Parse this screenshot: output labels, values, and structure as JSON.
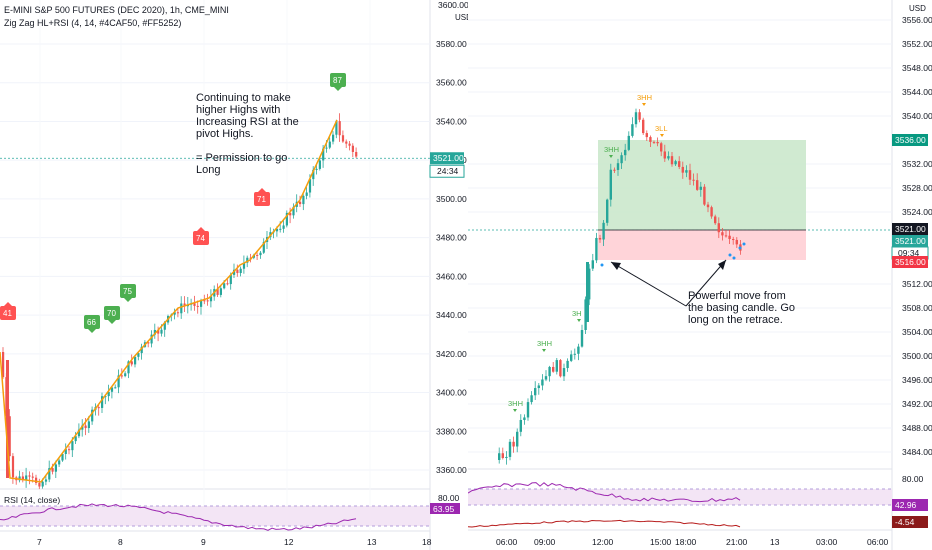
{
  "header": {
    "symbol": "E-MINI S&P 500 FUTURES (DEC 2020), 1h, CME_MINI",
    "indicator": "Zig Zag HL+RSI (4, 14, #4CAF50, #FF5252)"
  },
  "colors": {
    "up": "#26a69a",
    "down": "#ef5350",
    "zigzag": "#f59e0b",
    "green_label": "#4caf50",
    "red_label": "#ff5252",
    "rsi_line": "#9c27b0",
    "rsi_band": "#f3e5f5",
    "long_box_profit": "#c8e6c9",
    "long_box_stop": "#ffcdd2",
    "price_tag_blue": "#26a69a",
    "stop_tag": "#f23645",
    "target_tag": "#089981"
  },
  "left_panel": {
    "price_axis_labels": [
      "3580.00",
      "3560.00",
      "3540.00",
      "3520.00",
      "3500.00",
      "3480.00",
      "3460.00",
      "3440.00",
      "3420.00",
      "3400.00",
      "3380.00",
      "3360.00"
    ],
    "last_price_tag": "3521.00",
    "countdown_tag": "24:34",
    "top_cut_label": "3600.00",
    "time_labels": [
      "7",
      "8",
      "9",
      "12",
      "13",
      "18"
    ],
    "annotation": [
      "Continuing to make",
      "higher Highs with",
      "Increasing RSI at the",
      "pivot Highs.",
      "",
      "= Permission to go",
      "Long"
    ],
    "rsi_labels": [
      {
        "text": "41",
        "color": "red"
      },
      {
        "text": "66",
        "color": "green"
      },
      {
        "text": "70",
        "color": "green"
      },
      {
        "text": "75",
        "color": "green"
      },
      {
        "text": "74",
        "color": "red"
      },
      {
        "text": "71",
        "color": "red"
      },
      {
        "text": "87",
        "color": "green"
      }
    ],
    "rsi_title": "RSI (14, close)",
    "rsi_axis_label": "80.00",
    "rsi_value_tag": "63.95"
  },
  "right_panel": {
    "currency": "USD",
    "price_axis_labels": [
      "3556.00",
      "3552.00",
      "3548.00",
      "3544.00",
      "3540.00",
      "3532.00",
      "3528.00",
      "3524.00",
      "3512.00",
      "3508.00",
      "3504.00",
      "3500.00",
      "3496.00",
      "3492.00",
      "3488.00",
      "3484.00"
    ],
    "target_tag": "3536.00",
    "entry_tag": "3521.00",
    "last_tag": "3521.00",
    "countdown_tag": "09:34",
    "stop_tag": "3516.00",
    "time_labels": [
      "06:00",
      "09:00",
      "12:00",
      "15:00",
      "18:00",
      "21:00",
      "13",
      "03:00",
      "06:00"
    ],
    "zigzag_labels": [
      {
        "text": "3HH",
        "color": "green"
      },
      {
        "text": "3HH",
        "color": "green"
      },
      {
        "text": "3H",
        "color": "green"
      },
      {
        "text": "3HH",
        "color": "green"
      },
      {
        "text": "3HH",
        "color": "orange"
      },
      {
        "text": "3LL",
        "color": "orange"
      }
    ],
    "annotation": [
      "Powerful move from",
      "the basing candle. Go",
      "long on the retrace."
    ],
    "rsi_axis_label": "80.00",
    "rsi_value_tag": "42.96",
    "osc_value_tag": "-4.54"
  },
  "left_usd": "USD",
  "chart_data": [
    {
      "type": "line",
      "title": "E-MINI S&P 500 FUTURES (DEC 2020), 1h, CME_MINI",
      "xlabel": "",
      "ylabel": "",
      "x": [
        "7",
        "8",
        "9",
        "12",
        "13"
      ],
      "series": [
        {
          "name": "Zig Zag HL+RSI",
          "points": [
            [
              0,
              3424
            ],
            [
              0.3,
              3360
            ],
            [
              1,
              3372
            ],
            [
              2.3,
              3428
            ],
            [
              3.2,
              3447
            ],
            [
              3.6,
              3438
            ],
            [
              4.2,
              3462
            ],
            [
              4.6,
              3451
            ],
            [
              6,
              3480
            ],
            [
              7,
              3488
            ],
            [
              8.6,
              3540
            ]
          ]
        }
      ],
      "pivot_rsi": [
        41,
        66,
        70,
        75,
        74,
        71,
        87
      ],
      "ylim": [
        3358,
        3600
      ]
    },
    {
      "type": "line",
      "title": "",
      "xlabel": "",
      "ylabel": "",
      "x": [
        "06:00",
        "09:00",
        "12:00",
        "15:00",
        "18:00",
        "21:00"
      ],
      "long_position": {
        "entry": 3521.0,
        "target": 3536.0,
        "stop": 3516.0
      },
      "ylim": [
        3480,
        3558
      ]
    }
  ]
}
